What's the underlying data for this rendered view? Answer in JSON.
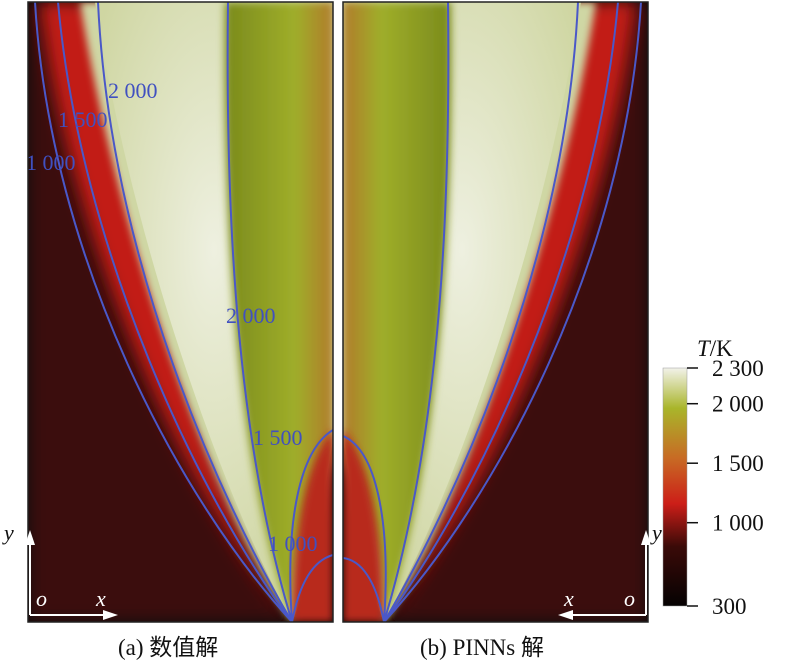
{
  "chart_data": [
    {
      "type": "heatmap",
      "panel": "a",
      "caption": "(a) 数值解",
      "contours": [
        {
          "value": "1 000",
          "label": "1 000"
        },
        {
          "value": "1 500",
          "label": "1 500"
        },
        {
          "value": "2 000",
          "label": "2 000"
        },
        {
          "value": "2 000",
          "label": "2 000"
        },
        {
          "value": "1 500",
          "label": "1 500"
        },
        {
          "value": "1 000",
          "label": "1 000"
        }
      ],
      "axes": {
        "x": "x",
        "y": "y",
        "origin": "o"
      }
    },
    {
      "type": "heatmap",
      "panel": "b",
      "caption": "(b) PINNs 解",
      "axes": {
        "x": "x",
        "y": "y",
        "origin": "o"
      }
    }
  ],
  "colorbar": {
    "title_var": "T",
    "title_unit": "/K",
    "ticks": [
      {
        "value": 2300,
        "label": "2 300"
      },
      {
        "value": 2000,
        "label": "2 000"
      },
      {
        "value": 1500,
        "label": "1 500"
      },
      {
        "value": 1000,
        "label": "1 000"
      },
      {
        "value": 300,
        "label": "300"
      }
    ],
    "range": [
      300,
      2300
    ]
  },
  "colors": {
    "hot": "#e8ecd8",
    "mid": "#a9b52a",
    "red": "#c8201e",
    "cold": "#0a0404",
    "contour": "#4a58c8",
    "label": "#4050c0"
  }
}
